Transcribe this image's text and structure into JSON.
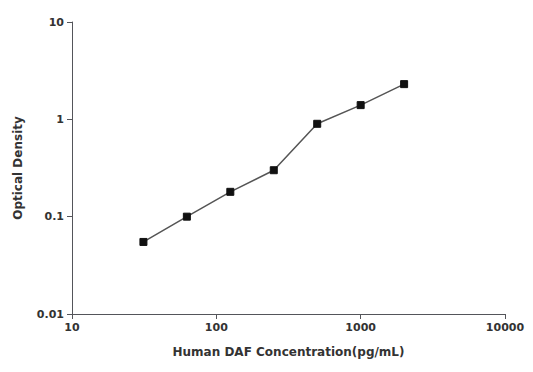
{
  "chart_data": {
    "type": "line",
    "x": [
      31.25,
      62.5,
      125,
      250,
      500,
      1000,
      2000
    ],
    "values": [
      0.055,
      0.1,
      0.18,
      0.3,
      0.9,
      1.4,
      2.3
    ],
    "xlabel": "Human DAF Concentration(pg/mL)",
    "ylabel": "Optical Density",
    "xlim": [
      10,
      10000
    ],
    "ylim": [
      0.01,
      10
    ],
    "xticks": [
      10,
      100,
      1000,
      10000
    ],
    "yticks": [
      0.01,
      0.1,
      1,
      10
    ],
    "log": true,
    "grid": false,
    "color": "#555555",
    "colors": [
      "#111111",
      "#111111",
      "#111111",
      "#111111",
      "#111111",
      "#111111",
      "#111111"
    ],
    "marker": "square",
    "line_style": "solid"
  }
}
